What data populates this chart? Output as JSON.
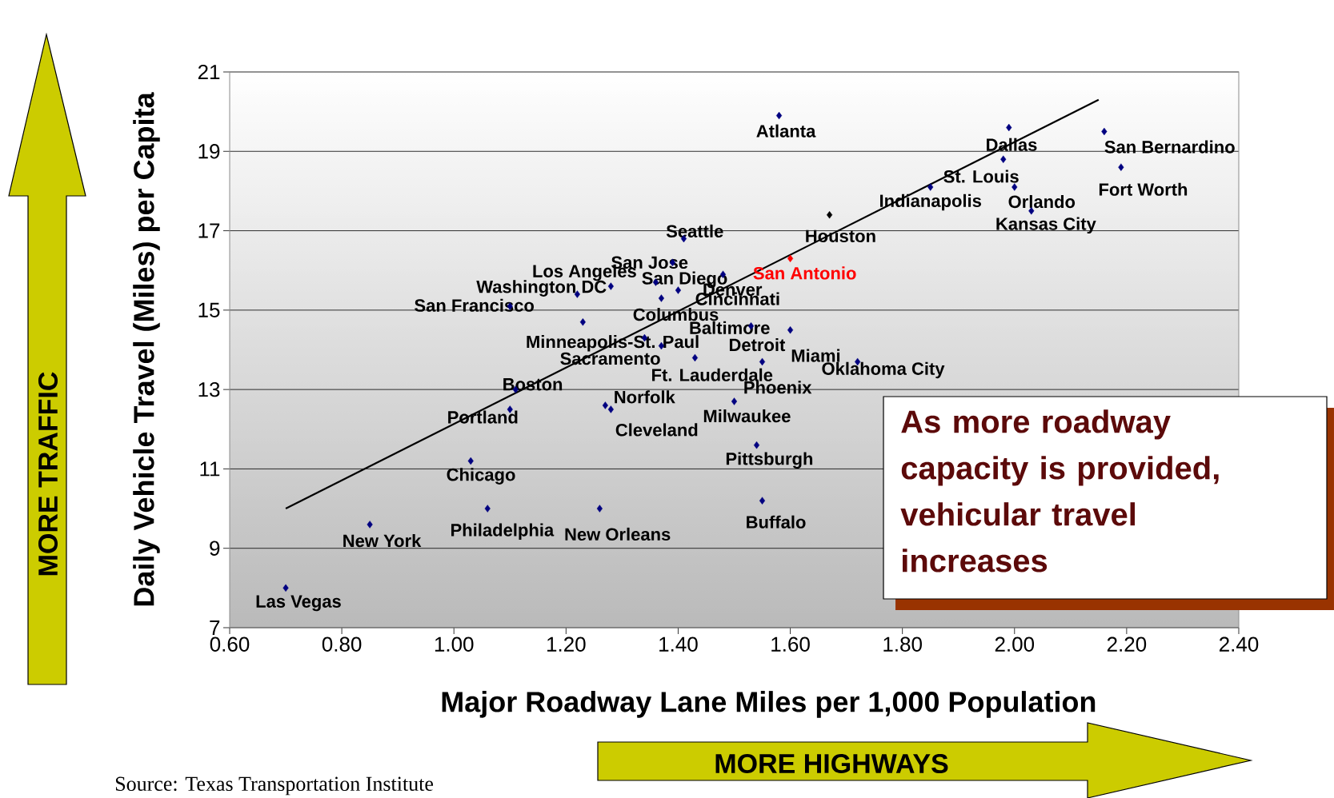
{
  "chart_data": {
    "type": "scatter",
    "xlabel": "Major Roadway Lane Miles per 1,000 Population",
    "ylabel": "Daily Vehicle Travel (Miles) per Capita",
    "xlim": [
      0.6,
      2.4
    ],
    "ylim": [
      7,
      21
    ],
    "xticks": [
      {
        "value": 0.6,
        "label": "0.60"
      },
      {
        "value": 0.8,
        "label": "0.80"
      },
      {
        "value": 1.0,
        "label": "1.00"
      },
      {
        "value": 1.2,
        "label": "1.20"
      },
      {
        "value": 1.4,
        "label": "1.40"
      },
      {
        "value": 1.6,
        "label": "1.60"
      },
      {
        "value": 1.8,
        "label": "1.80"
      },
      {
        "value": 2.0,
        "label": "2.00"
      },
      {
        "value": 2.2,
        "label": "2.20"
      },
      {
        "value": 2.4,
        "label": "2.40"
      }
    ],
    "yticks": [
      7,
      9,
      11,
      13,
      15,
      17,
      19,
      21
    ],
    "grid": "y",
    "marker": "diamond",
    "series": [
      {
        "x": [
          1.58,
          1.99,
          2.16,
          1.98,
          2.19,
          2.0,
          1.85,
          2.03,
          1.67,
          1.41,
          1.6,
          1.39,
          1.28,
          1.36,
          1.22,
          1.48,
          1.1,
          1.4,
          1.37,
          1.23,
          1.34,
          1.53,
          1.6,
          1.37,
          1.43,
          1.55,
          1.72,
          1.11,
          1.27,
          1.1,
          1.5,
          1.28,
          1.54,
          1.03,
          1.55,
          0.85,
          1.06,
          1.26,
          0.7
        ],
        "values": [
          19.9,
          19.6,
          19.5,
          18.8,
          18.6,
          18.1,
          18.1,
          17.5,
          17.4,
          16.8,
          16.3,
          16.2,
          15.6,
          15.7,
          15.4,
          15.9,
          15.1,
          15.5,
          15.3,
          14.7,
          14.3,
          14.6,
          14.5,
          14.1,
          13.8,
          13.7,
          13.7,
          13.0,
          12.6,
          12.5,
          12.7,
          12.5,
          11.6,
          11.2,
          10.2,
          9.6,
          10.0,
          10.0,
          8.0
        ],
        "colors": [
          "#000080",
          "#000080",
          "#000080",
          "#000080",
          "#000080",
          "#000080",
          "#000080",
          "#000080",
          "#000000",
          "#000080",
          "#ff0000",
          "#000080",
          "#000080",
          "#000080",
          "#000080",
          "#000080",
          "#000080",
          "#000080",
          "#000080",
          "#000080",
          "#000080",
          "#000080",
          "#000080",
          "#000080",
          "#000080",
          "#000080",
          "#000080",
          "#000080",
          "#000080",
          "#000080",
          "#000080",
          "#000080",
          "#000080",
          "#000080",
          "#000080",
          "#000080",
          "#000080",
          "#000080",
          "#000080"
        ]
      },
      {
        "type": "line",
        "x": [
          0.7,
          2.15
        ],
        "values": [
          10.0,
          20.3
        ],
        "color": "#000000",
        "marker": "none"
      }
    ],
    "annotations": [
      {
        "text": "Atlanta",
        "x": 1.58,
        "y": 19.9
      },
      {
        "text": "Dallas",
        "x": 1.99,
        "y": 19.6
      },
      {
        "text": "San Bernardino",
        "x": 2.16,
        "y": 19.5
      },
      {
        "text": "St. Louis",
        "x": 1.98,
        "y": 18.8
      },
      {
        "text": "Fort Worth",
        "x": 2.19,
        "y": 18.6
      },
      {
        "text": "Orlando",
        "x": 2.0,
        "y": 18.1
      },
      {
        "text": "Indianapolis",
        "x": 1.85,
        "y": 18.1
      },
      {
        "text": "Kansas City",
        "x": 2.03,
        "y": 17.5
      },
      {
        "text": "Houston",
        "x": 1.67,
        "y": 17.4
      },
      {
        "text": "Seattle",
        "x": 1.41,
        "y": 16.8
      },
      {
        "text": "San Antonio",
        "x": 1.6,
        "y": 16.3
      },
      {
        "text": "San Jose",
        "x": 1.39,
        "y": 16.2
      },
      {
        "text": "Los Angeles",
        "x": 1.28,
        "y": 15.6
      },
      {
        "text": "San Diego",
        "x": 1.36,
        "y": 15.7
      },
      {
        "text": "Washington DC",
        "x": 1.22,
        "y": 15.4
      },
      {
        "text": "Denver",
        "x": 1.48,
        "y": 15.9
      },
      {
        "text": "San Francisco",
        "x": 1.1,
        "y": 15.1
      },
      {
        "text": "Cincinnati",
        "x": 1.4,
        "y": 15.5
      },
      {
        "text": "Columbus",
        "x": 1.37,
        "y": 15.3
      },
      {
        "text": "Minneapolis-St. Paul",
        "x": 1.23,
        "y": 14.7
      },
      {
        "text": "Baltimore",
        "x": 1.34,
        "y": 14.3
      },
      {
        "text": "Detroit",
        "x": 1.53,
        "y": 14.6
      },
      {
        "text": "Miami",
        "x": 1.6,
        "y": 14.5
      },
      {
        "text": "Sacramento",
        "x": 1.37,
        "y": 14.1
      },
      {
        "text": "Ft. Lauderdale",
        "x": 1.43,
        "y": 13.8
      },
      {
        "text": "Phoenix",
        "x": 1.55,
        "y": 13.7
      },
      {
        "text": "Oklahoma City",
        "x": 1.72,
        "y": 13.7
      },
      {
        "text": "Boston",
        "x": 1.11,
        "y": 13.0
      },
      {
        "text": "Norfolk",
        "x": 1.27,
        "y": 12.6
      },
      {
        "text": "Portland",
        "x": 1.1,
        "y": 12.5
      },
      {
        "text": "Milwaukee",
        "x": 1.5,
        "y": 12.7
      },
      {
        "text": "Cleveland",
        "x": 1.28,
        "y": 12.5
      },
      {
        "text": "Pittsburgh",
        "x": 1.54,
        "y": 11.6
      },
      {
        "text": "Chicago",
        "x": 1.03,
        "y": 11.2
      },
      {
        "text": "Buffalo",
        "x": 1.55,
        "y": 10.2
      },
      {
        "text": "New York",
        "x": 0.85,
        "y": 9.6
      },
      {
        "text": "Philadelphia",
        "x": 1.06,
        "y": 10.0
      },
      {
        "text": "New Orleans",
        "x": 1.26,
        "y": 10.0
      },
      {
        "text": "Las Vegas",
        "x": 0.7,
        "y": 8.0
      },
      "As more roadway capacity is provided, vehicular travel increases",
      "MORE TRAFFIC",
      "MORE HIGHWAYS",
      "Source:  Texas Transportation Institute"
    ]
  }
}
